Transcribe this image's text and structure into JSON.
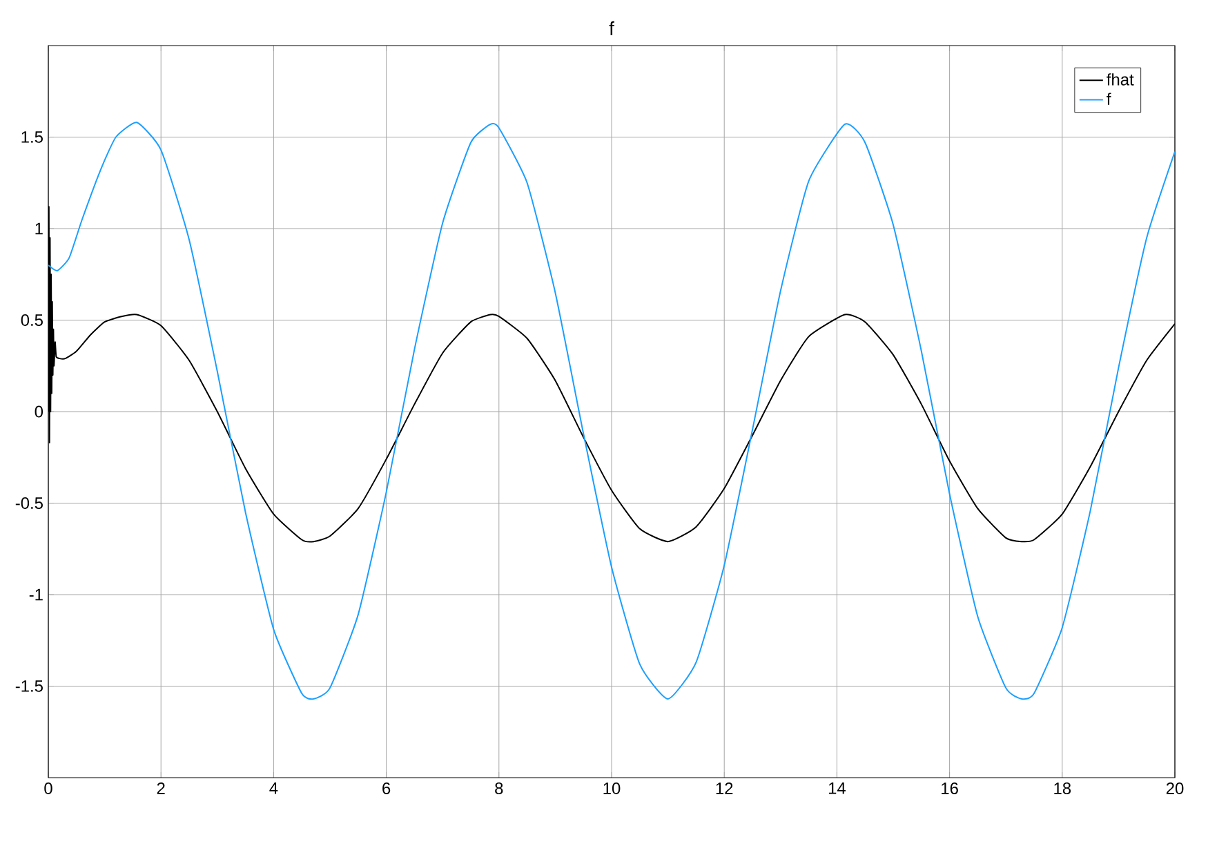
{
  "chart_data": {
    "type": "line",
    "title": "f",
    "xlim": [
      0,
      20
    ],
    "xticks": [
      0,
      2,
      4,
      6,
      8,
      10,
      12,
      14,
      16,
      18,
      20
    ],
    "ylim": [
      -2,
      2
    ],
    "yticks": [
      -1.5,
      -1,
      -0.5,
      0,
      0.5,
      1,
      1.5
    ],
    "grid": true,
    "legend": "top right",
    "series": [
      {
        "name": "fhat",
        "color": "#000000",
        "x": [
          0,
          0.01,
          0.02,
          0.03,
          0.04,
          0.05,
          0.06,
          0.07,
          0.08,
          0.09,
          0.1,
          0.12,
          0.14,
          0.2,
          0.3,
          0.5,
          0.75,
          1.0,
          1.3,
          1.57,
          2,
          2.5,
          3,
          3.5,
          4,
          4.5,
          4.71,
          5,
          5.5,
          6,
          6.5,
          7,
          7.5,
          7.85,
          8,
          8.5,
          9,
          9.5,
          10,
          10.5,
          11,
          11.5,
          12,
          12.5,
          13,
          13.5,
          14.14,
          14.5,
          15,
          15.5,
          16,
          16.5,
          17,
          17.28,
          17.5,
          18,
          18.5,
          19,
          19.5,
          20
        ],
        "values": [
          0,
          1.12,
          -0.17,
          0.95,
          0.0,
          0.75,
          0.1,
          0.6,
          0.2,
          0.45,
          0.25,
          0.38,
          0.3,
          0.29,
          0.29,
          0.33,
          0.42,
          0.49,
          0.52,
          0.53,
          0.47,
          0.28,
          0.0,
          -0.31,
          -0.56,
          -0.7,
          -0.71,
          -0.68,
          -0.53,
          -0.26,
          0.04,
          0.32,
          0.49,
          0.53,
          0.52,
          0.4,
          0.17,
          -0.14,
          -0.43,
          -0.64,
          -0.71,
          -0.63,
          -0.42,
          -0.13,
          0.17,
          0.41,
          0.53,
          0.49,
          0.31,
          0.04,
          -0.27,
          -0.53,
          -0.69,
          -0.71,
          -0.7,
          -0.56,
          -0.3,
          0.0,
          0.28,
          0.48
        ]
      },
      {
        "name": "f",
        "color": "#1a9fff",
        "x": [
          0,
          0.16,
          0.37,
          0.6,
          0.94,
          1.2,
          1.57,
          2,
          2.5,
          3,
          3.5,
          4,
          4.5,
          4.71,
          5,
          5.5,
          6,
          6.5,
          7,
          7.5,
          7.85,
          8,
          8.5,
          9,
          9.5,
          10,
          10.5,
          11,
          11.5,
          12,
          12.5,
          13,
          13.5,
          14.14,
          14.5,
          15,
          15.5,
          16,
          16.5,
          17,
          17.28,
          17.5,
          18,
          18.5,
          19,
          19.5,
          20
        ],
        "values": [
          0.8,
          0.77,
          0.84,
          1.05,
          1.33,
          1.5,
          1.58,
          1.43,
          0.94,
          0.22,
          -0.55,
          -1.19,
          -1.54,
          -1.57,
          -1.51,
          -1.11,
          -0.44,
          0.34,
          1.03,
          1.47,
          1.57,
          1.55,
          1.25,
          0.65,
          -0.12,
          -0.85,
          -1.38,
          -1.57,
          -1.37,
          -0.84,
          -0.1,
          0.66,
          1.26,
          1.57,
          1.47,
          1.02,
          0.33,
          -0.45,
          -1.12,
          -1.51,
          -1.57,
          -1.54,
          -1.18,
          -0.54,
          0.24,
          0.95,
          1.42
        ]
      }
    ]
  }
}
